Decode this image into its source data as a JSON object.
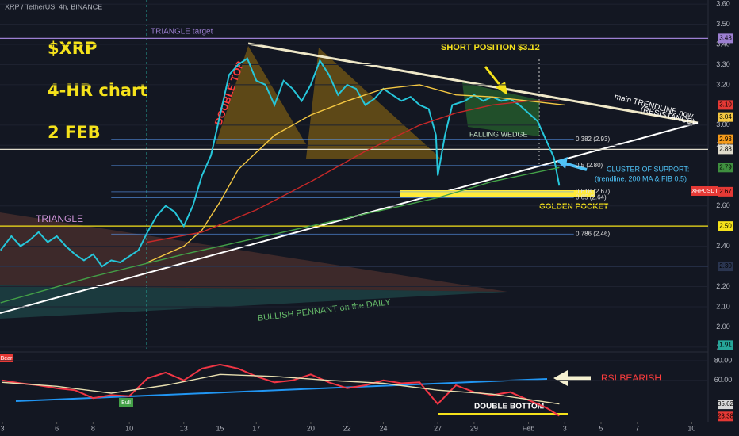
{
  "chart_data": [
    {
      "type": "line",
      "title": "XRP / TetherUS, 4h, BINANCE",
      "xlim": [
        2.87,
        41.9
      ],
      "xticks": [
        3,
        6,
        8,
        10,
        13,
        15,
        17,
        20,
        22,
        24,
        27,
        29,
        {
          "value": 32,
          "label": "Feb"
        },
        {
          "value": 34,
          "label": "3"
        },
        {
          "value": 36,
          "label": "5"
        },
        {
          "value": 38,
          "label": "7"
        },
        {
          "value": 41,
          "label": "10"
        }
      ],
      "ylim": [
        1.88,
        3.62
      ],
      "yticks": [
        {
          "value": 3.6,
          "label": "3.60"
        },
        {
          "value": 3.5,
          "label": "3.50"
        },
        {
          "value": 3.4,
          "label": "3.40"
        },
        {
          "value": 3.3,
          "label": "3.30"
        },
        {
          "value": 3.2,
          "label": "3.20"
        },
        {
          "value": 3.0,
          "label": "3.00"
        },
        {
          "value": 2.9,
          "label": "2.90"
        },
        {
          "value": 2.6,
          "label": "2.60"
        },
        {
          "value": 2.4,
          "label": "2.40"
        },
        {
          "value": 2.2,
          "label": "2.20"
        },
        {
          "value": 2.1,
          "label": "2.10"
        },
        {
          "value": 2.0,
          "label": "2.00"
        },
        {
          "value": 1.9,
          "label": "1.90"
        }
      ],
      "series": [
        {
          "color": "#26c6da",
          "x": [
            2.9,
            3.5,
            4,
            4.5,
            5,
            5.5,
            6,
            6.5,
            7,
            7.5,
            8,
            8.5,
            9,
            9.5,
            10,
            10.5,
            11,
            11.5,
            12,
            12.5,
            13,
            13.5,
            14,
            14.5,
            15,
            15.5,
            16,
            16.5,
            17,
            17.5,
            18,
            18.5,
            19,
            19.5,
            20,
            20.5,
            21,
            21.5,
            22,
            22.5,
            23,
            23.5,
            24,
            24.5,
            25,
            25.5,
            26,
            26.5,
            26.9,
            27,
            27.4,
            27.8,
            28.5,
            29,
            29.5,
            30,
            30.5,
            31,
            31.5,
            32,
            32.5,
            33,
            33.4,
            33.7
          ],
          "values": [
            2.38,
            2.45,
            2.4,
            2.43,
            2.47,
            2.42,
            2.45,
            2.4,
            2.36,
            2.33,
            2.36,
            2.3,
            2.33,
            2.32,
            2.35,
            2.38,
            2.47,
            2.55,
            2.6,
            2.57,
            2.5,
            2.6,
            2.75,
            2.85,
            3.05,
            3.25,
            3.3,
            3.33,
            3.22,
            3.2,
            3.1,
            3.22,
            3.18,
            3.12,
            3.2,
            3.32,
            3.25,
            3.15,
            3.2,
            3.18,
            3.1,
            3.13,
            3.18,
            3.15,
            3.12,
            3.14,
            3.1,
            3.08,
            2.95,
            2.75,
            2.95,
            3.1,
            3.12,
            3.15,
            3.12,
            3.14,
            3.12,
            3.13,
            3.1,
            3.06,
            3.02,
            2.92,
            2.84,
            2.7
          ]
        },
        {
          "color": "#f5c842",
          "x": [
            11,
            13,
            14,
            15,
            16,
            18,
            20,
            22,
            24,
            26,
            28,
            30,
            32,
            34
          ],
          "values": [
            2.32,
            2.4,
            2.48,
            2.62,
            2.78,
            2.95,
            3.05,
            3.12,
            3.18,
            3.2,
            3.15,
            3.14,
            3.12,
            3.1
          ]
        },
        {
          "color": "#c62828",
          "x": [
            11,
            14,
            17,
            20,
            23,
            26,
            28,
            30,
            32,
            33.7
          ],
          "values": [
            2.42,
            2.47,
            2.58,
            2.72,
            2.87,
            3.0,
            3.06,
            3.1,
            3.12,
            3.12
          ]
        },
        {
          "color": "#43a047",
          "x": [
            2.9,
            8,
            13,
            18,
            23,
            27,
            30,
            33.7
          ],
          "values": [
            2.12,
            2.25,
            2.36,
            2.46,
            2.56,
            2.64,
            2.72,
            2.79
          ]
        }
      ],
      "fib_color": "#5b9cf6",
      "fibs": [
        {
          "price": 2.93,
          "label": "0.382 (2.93)"
        },
        {
          "price": 2.8,
          "label": "0.5 (2.80)"
        },
        {
          "price": 2.67,
          "label": "0.618 (2.67)"
        },
        {
          "price": 2.64,
          "label": "0.65 (2.64)"
        },
        {
          "price": 2.46,
          "label": "0.786 (2.46)"
        }
      ],
      "price_tags": [
        {
          "value": 3.43,
          "label": "3.43",
          "color": "#9c7fd1",
          "level": true
        },
        {
          "value": 3.1,
          "label": "3.10",
          "color": "#e53935"
        },
        {
          "value": 3.04,
          "label": "3.04",
          "color": "#f5c842"
        },
        {
          "value": 2.93,
          "label": "2.93",
          "color": "#f59b1b"
        },
        {
          "value": 2.88,
          "label": "2.88",
          "color": "#e0dccc",
          "level": true
        },
        {
          "value": 2.79,
          "label": "2.79",
          "color": "#3f8f3f"
        },
        {
          "value": 2.67,
          "label": "2.67",
          "color": "#e53935"
        },
        {
          "value": 2.5,
          "label": "2.50",
          "color": "#f5e21b",
          "level": true
        },
        {
          "value": 2.3,
          "label": "2.30",
          "color": "#2a3550",
          "level": true
        },
        {
          "value": 1.91,
          "label": "1.91",
          "color": "#26a69a"
        }
      ],
      "annotations": [
        "$XRP",
        "4-HR chart",
        "2 FEB",
        "TRIANGLE target",
        "DOUBLE TOP",
        "SHORT POSITION $3.12",
        "main TRENDLINE now",
        "(RESISTANCE)",
        "FALLING WEDGE",
        "CLUSTER OF SUPPORT:",
        "(trendline, 200 MA & FIB 0.5)",
        "GOLDEN POCKET",
        "TRIANGLE",
        "BULLISH PENNANT on the DAILY",
        "XRPUSDT"
      ]
    },
    {
      "type": "line",
      "ylim": [
        18,
        88
      ],
      "yticks": [
        {
          "value": 80,
          "label": "80.00"
        },
        {
          "value": 60,
          "label": "60.00"
        }
      ],
      "series": [
        {
          "color": "#f23645",
          "x": [
            3,
            4,
            5,
            6,
            7,
            8,
            9,
            10,
            11,
            12,
            13,
            14,
            15,
            16,
            17,
            18,
            19,
            20,
            21,
            22,
            23,
            24,
            25,
            26,
            27,
            28,
            29,
            30,
            31,
            32,
            33,
            33.7
          ],
          "values": [
            60,
            57,
            55,
            52,
            50,
            42,
            45,
            44,
            62,
            68,
            60,
            72,
            76,
            72,
            64,
            58,
            60,
            66,
            58,
            52,
            55,
            60,
            57,
            58,
            36,
            55,
            48,
            45,
            48,
            40,
            32,
            24
          ]
        },
        {
          "color": "#e8dfb0",
          "x": [
            3,
            6,
            9,
            12,
            15,
            18,
            21,
            24,
            27,
            30,
            33.7
          ],
          "values": [
            58,
            54,
            47,
            55,
            66,
            64,
            60,
            57,
            50,
            46,
            36
          ]
        }
      ],
      "price_tags": [
        {
          "value": 35.62,
          "label": "35.62",
          "color": "#d8d8d8"
        },
        {
          "value": 23.38,
          "label": "23.38",
          "color": "#e53935"
        }
      ],
      "annotations": [
        "RSI BEARISH",
        "DOUBLE BOTTOM",
        "Bear",
        "Bull"
      ]
    }
  ]
}
